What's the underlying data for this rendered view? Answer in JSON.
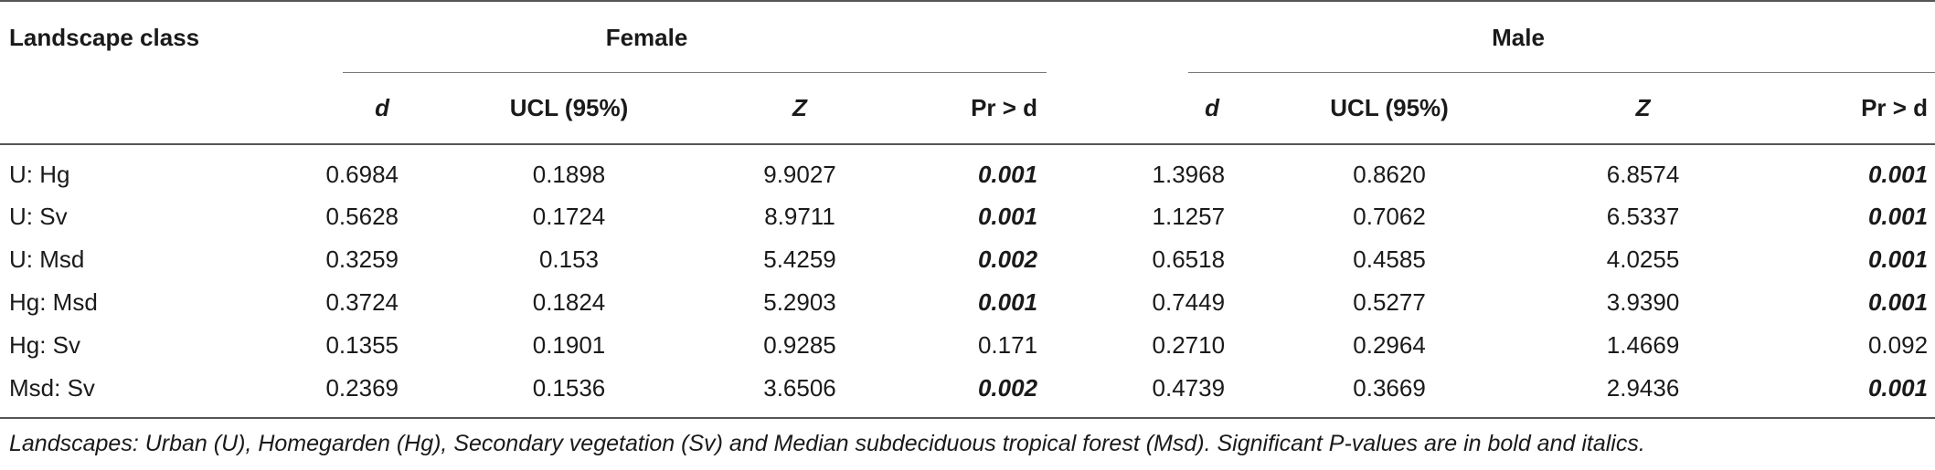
{
  "table": {
    "stub_header": "Landscape class",
    "groups": [
      {
        "label": "Female"
      },
      {
        "label": "Male"
      }
    ],
    "subheaders": {
      "female": [
        "d",
        "UCL (95%)",
        "Z",
        "Pr > d"
      ],
      "male": [
        "d",
        "UCL (95%)",
        "Z",
        "Pr > d"
      ]
    },
    "rows": [
      {
        "label": "U: Hg",
        "female": [
          "0.6984",
          "0.1898",
          "9.9027",
          "0.001"
        ],
        "female_sig": true,
        "male": [
          "1.3968",
          "0.8620",
          "6.8574",
          "0.001"
        ],
        "male_sig": true
      },
      {
        "label": "U: Sv",
        "female": [
          "0.5628",
          "0.1724",
          "8.9711",
          "0.001"
        ],
        "female_sig": true,
        "male": [
          "1.1257",
          "0.7062",
          "6.5337",
          "0.001"
        ],
        "male_sig": true
      },
      {
        "label": "U: Msd",
        "female": [
          "0.3259",
          "0.153",
          "5.4259",
          "0.002"
        ],
        "female_sig": true,
        "male": [
          "0.6518",
          "0.4585",
          "4.0255",
          "0.001"
        ],
        "male_sig": true
      },
      {
        "label": "Hg: Msd",
        "female": [
          "0.3724",
          "0.1824",
          "5.2903",
          "0.001"
        ],
        "female_sig": true,
        "male": [
          "0.7449",
          "0.5277",
          "3.9390",
          "0.001"
        ],
        "male_sig": true
      },
      {
        "label": "Hg: Sv",
        "female": [
          "0.1355",
          "0.1901",
          "0.9285",
          "0.171"
        ],
        "female_sig": false,
        "male": [
          "0.2710",
          "0.2964",
          "1.4669",
          "0.092"
        ],
        "male_sig": false
      },
      {
        "label": "Msd: Sv",
        "female": [
          "0.2369",
          "0.1536",
          "3.6506",
          "0.002"
        ],
        "female_sig": true,
        "male": [
          "0.4739",
          "0.3669",
          "2.9436",
          "0.001"
        ],
        "male_sig": true
      }
    ]
  },
  "footnote": "Landscapes: Urban (U), Homegarden (Hg), Secondary vegetation (Sv) and Median subdeciduous tropical forest (Msd). Significant P-values are in bold and italics."
}
